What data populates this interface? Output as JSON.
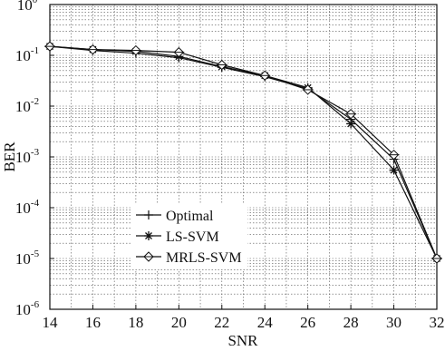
{
  "chart_data": {
    "type": "line",
    "title": "",
    "xlabel": "SNR",
    "ylabel": "BER",
    "xlim": [
      14,
      32
    ],
    "ylim": [
      1e-06,
      1
    ],
    "yscale": "log",
    "grid": true,
    "legend": "center-left",
    "x_ticks": [
      14,
      16,
      18,
      20,
      22,
      24,
      26,
      28,
      30,
      32
    ],
    "y_ticks": [
      {
        "value": 1,
        "base": "10",
        "exp": "0"
      },
      {
        "value": 0.1,
        "base": "10",
        "exp": "-1"
      },
      {
        "value": 0.01,
        "base": "10",
        "exp": "-2"
      },
      {
        "value": 0.001,
        "base": "10",
        "exp": "-3"
      },
      {
        "value": 0.0001,
        "base": "10",
        "exp": "-4"
      },
      {
        "value": 1e-05,
        "base": "10",
        "exp": "-5"
      },
      {
        "value": 1e-06,
        "base": "10",
        "exp": "-6"
      }
    ],
    "series": [
      {
        "name": "Optimal",
        "marker": "plus",
        "x": [
          14,
          16,
          18,
          20,
          22,
          24,
          26,
          28,
          30,
          32
        ],
        "y": [
          0.15,
          0.125,
          0.11,
          0.09,
          0.058,
          0.038,
          0.022,
          0.0055,
          0.0009,
          1e-05
        ]
      },
      {
        "name": "LS-SVM",
        "marker": "star",
        "x": [
          14,
          16,
          18,
          20,
          22,
          24,
          26,
          28,
          30,
          32
        ],
        "y": [
          0.15,
          0.13,
          0.12,
          0.095,
          0.06,
          0.04,
          0.023,
          0.0045,
          0.00055,
          1e-05
        ]
      },
      {
        "name": "MRLS-SVM",
        "marker": "diamond",
        "x": [
          14,
          16,
          18,
          20,
          22,
          24,
          26,
          28,
          30,
          32
        ],
        "y": [
          0.15,
          0.13,
          0.125,
          0.115,
          0.065,
          0.04,
          0.021,
          0.007,
          0.0011,
          1e-05
        ]
      }
    ]
  }
}
